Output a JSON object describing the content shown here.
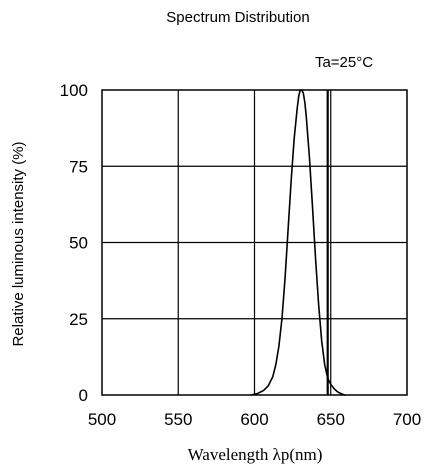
{
  "chart_data": {
    "type": "line",
    "title": "Spectrum Distribution",
    "annotation": "Ta=25°C",
    "xlabel": "Wavelength λp(nm)",
    "ylabel": "Relative luminous intensity  (%)",
    "xlim": [
      500,
      700
    ],
    "ylim": [
      0,
      100
    ],
    "x_ticks": [
      500,
      550,
      600,
      650,
      700
    ],
    "y_ticks": [
      0,
      25,
      50,
      75,
      100
    ],
    "x_tick_labels": [
      "500",
      "550",
      "600",
      "650",
      "700"
    ],
    "y_tick_labels": [
      "0",
      "25",
      "50",
      "75",
      "100"
    ],
    "grid": true,
    "vertical_marker": 648,
    "series": [
      {
        "x": [
          598,
          602,
          606,
          609,
          612,
          614,
          616,
          618,
          620,
          622,
          624,
          626,
          628,
          629,
          630,
          631,
          632,
          633,
          634,
          636,
          638,
          640,
          642,
          644,
          646,
          648,
          650,
          652,
          654,
          656,
          659
        ],
        "y": [
          0,
          0.5,
          1.5,
          3,
          6,
          10,
          16,
          25,
          38,
          54,
          70,
          84,
          94,
          98,
          100,
          100,
          99,
          96,
          91,
          78,
          62,
          45,
          30,
          18,
          10,
          5.5,
          3.5,
          2.2,
          1.2,
          0.6,
          0
        ]
      }
    ],
    "colors": {
      "line": "#000000",
      "grid": "#000000",
      "background": "#ffffff"
    }
  }
}
